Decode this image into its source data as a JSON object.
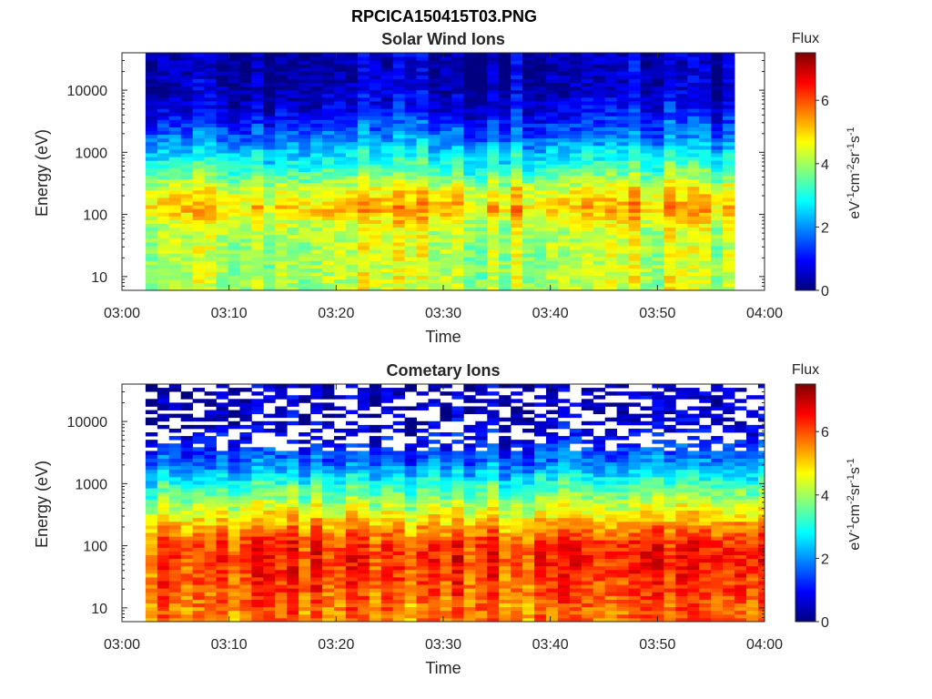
{
  "figure": {
    "title": "RPCICA150415T03.PNG"
  },
  "colorbar": {
    "label": "Flux",
    "units_parts": [
      "eV",
      "-1",
      "cm",
      "-2",
      "sr",
      "-1",
      "s",
      "-1"
    ],
    "ticks": [
      0,
      2,
      4,
      6
    ],
    "range": [
      0,
      7.5
    ],
    "colormap": "jet"
  },
  "chart_data": [
    {
      "type": "heatmap",
      "title": "Solar Wind Ions",
      "xlabel": "Time",
      "ylabel": "Energy (eV)",
      "yscale": "log",
      "ylim": [
        6,
        40000
      ],
      "xlim_minutes": [
        0,
        60
      ],
      "x_tick_labels": [
        "03:00",
        "03:10",
        "03:20",
        "03:30",
        "03:40",
        "03:50",
        "04:00"
      ],
      "y_tick_labels": [
        "10",
        "100",
        "1000",
        "10000"
      ],
      "data_start_minute": 2.2,
      "data_end_minute": 57.2,
      "notes": "Flux ~4-5 below 300 eV (peak ~5-5.5 near 100 eV), ~3.5 at 300-1000 eV, ~1-2 at 1-3 keV, ~0.5 above 3 keV; last scan (57.2-60 min) only above ~220 eV",
      "profile_energy_eV": [
        8,
        20,
        60,
        120,
        250,
        500,
        1000,
        2000,
        5000,
        10000,
        30000
      ],
      "profile_flux": [
        4.2,
        4.2,
        4.3,
        5.2,
        4.6,
        3.4,
        2.6,
        1.7,
        0.8,
        0.5,
        0.4
      ]
    },
    {
      "type": "heatmap",
      "title": "Cometary Ions",
      "xlabel": "Time",
      "ylabel": "Energy (eV)",
      "yscale": "log",
      "ylim": [
        6,
        40000
      ],
      "xlim_minutes": [
        0,
        60
      ],
      "x_tick_labels": [
        "03:00",
        "03:10",
        "03:20",
        "03:30",
        "03:40",
        "03:50",
        "04:00"
      ],
      "y_tick_labels": [
        "10",
        "100",
        "1000",
        "10000"
      ],
      "data_start_minute": 2.2,
      "data_end_minute": 60,
      "notes": "Flux ~5.5-6.5 between 10-150 eV, ~4.5 at 300 eV, ~3 at 1000 eV, ~1-2 at 2-5 keV, sparse near 0 above 5 keV",
      "profile_energy_eV": [
        8,
        20,
        60,
        120,
        250,
        500,
        1000,
        2000,
        5000,
        10000,
        30000
      ],
      "profile_flux": [
        5.6,
        5.9,
        6.2,
        6.0,
        5.0,
        4.0,
        3.0,
        1.8,
        0.9,
        0.4,
        0.3
      ]
    }
  ]
}
